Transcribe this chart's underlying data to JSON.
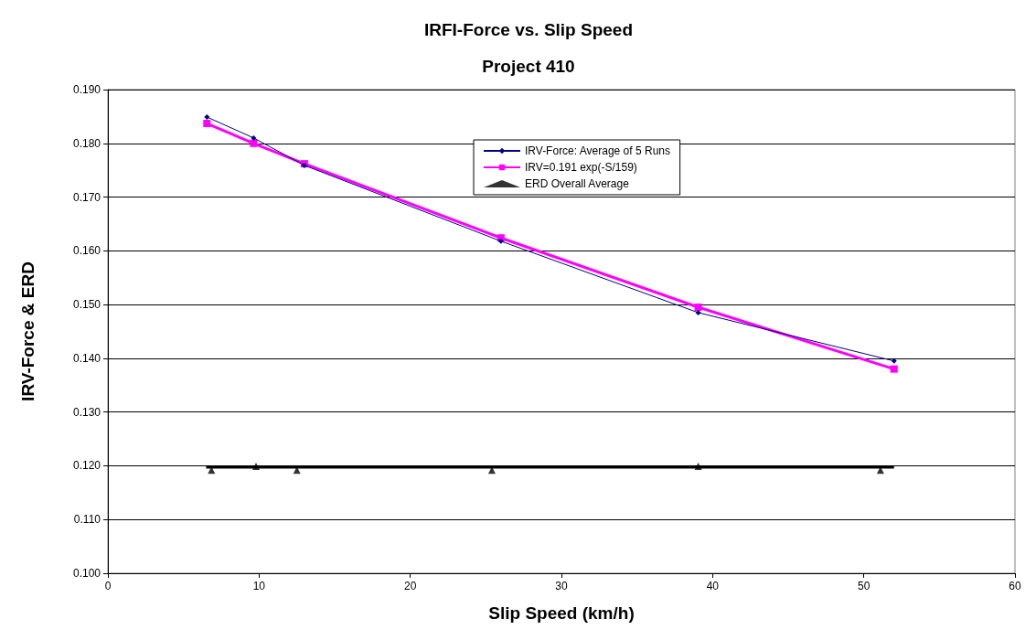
{
  "chart_data": {
    "type": "line",
    "title": "IRFI-Force vs. Slip Speed",
    "subtitle": "Project 410",
    "xlabel": "Slip Speed (km/h)",
    "ylabel": "IRV-Force & ERD",
    "xlim": [
      0,
      60
    ],
    "xticks": [
      0,
      10,
      20,
      30,
      40,
      50,
      60
    ],
    "ylim": [
      0.1,
      0.19
    ],
    "yticks": [
      {
        "value": 0.1,
        "label": "0.100"
      },
      {
        "value": 0.11,
        "label": "0.110"
      },
      {
        "value": 0.12,
        "label": "0.120"
      },
      {
        "value": 0.13,
        "label": "0.130"
      },
      {
        "value": 0.14,
        "label": "0.140"
      },
      {
        "value": 0.15,
        "label": "0.150"
      },
      {
        "value": 0.16,
        "label": "0.160"
      },
      {
        "value": 0.17,
        "label": "0.170"
      },
      {
        "value": 0.18,
        "label": "0.180"
      },
      {
        "value": 0.19,
        "label": "0.190"
      }
    ],
    "grid": "y",
    "legend": "top",
    "series": [
      {
        "name": "IRV-Force: Average of 5 Runs",
        "color": "#000080",
        "marker": "diamond",
        "x": [
          6.55,
          9.64,
          13.0,
          26.0,
          39.05,
          52.0
        ],
        "values": [
          0.1849,
          0.181,
          0.1759,
          0.1618,
          0.1485,
          0.1395
        ]
      },
      {
        "name": "IRV=0.191 exp(-S/159)",
        "color": "#ff00ff",
        "marker": "square",
        "x": [
          6.55,
          9.64,
          13.0,
          26.0,
          39.05,
          52.0
        ],
        "values": [
          0.1837,
          0.18,
          0.1762,
          0.1624,
          0.1495,
          0.138
        ]
      },
      {
        "name": "ERD Overall Average",
        "type": "scatter",
        "color": "#000000",
        "marker": "triangle",
        "x": [
          6.85,
          9.8,
          12.5,
          25.4,
          39.05,
          51.1
        ],
        "values": [
          0.1192,
          0.1199,
          0.1192,
          0.1192,
          0.1199,
          0.1192
        ]
      },
      {
        "color": "#000000",
        "marker": "none",
        "x": [
          6.5,
          52.0
        ],
        "values": [
          0.1197,
          0.1197
        ]
      }
    ]
  }
}
